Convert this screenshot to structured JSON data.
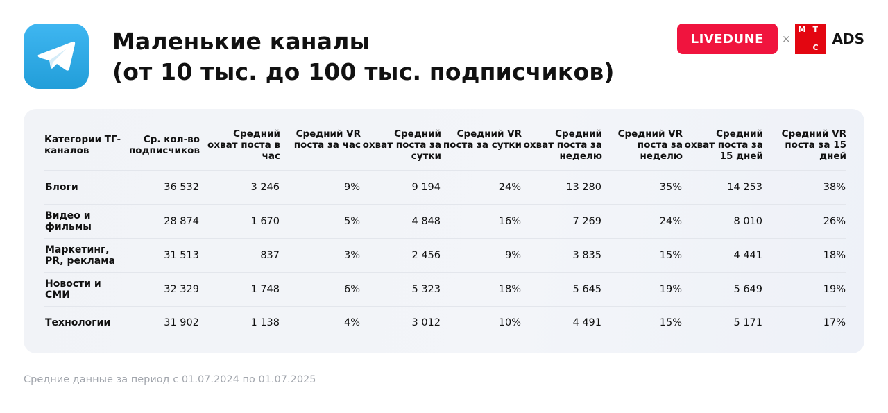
{
  "header": {
    "title_line1": "Маленькие каналы",
    "title_line2": "(от 10 тыс. до 100 тыс. подписчиков)",
    "logo_icon": "telegram-icon",
    "brand1": "LIVEDUNE",
    "separator": "×",
    "brand2_letters": [
      "М",
      "Т",
      "С"
    ],
    "brand2_suffix": "ADS",
    "colors": {
      "telegram": "#229ed9",
      "livedune": "#f0143e",
      "mts": "#e30611"
    }
  },
  "table": {
    "columns": [
      "Категории ТГ-каналов",
      "Ср. кол-во подписчиков",
      "Средний охват поста в час",
      "Средний VR поста за час",
      "Средний охват поста за сутки",
      "Средний VR поста за сутки",
      "Средний охват поста за неделю",
      "Средний VR поста за неделю",
      "Средний охват поста за 15 дней",
      "Средний VR поста за 15 дней"
    ],
    "rows": [
      [
        "Блоги",
        "36 532",
        "3 246",
        "9%",
        "9 194",
        "24%",
        "13 280",
        "35%",
        "14 253",
        "38%"
      ],
      [
        "Видео и фильмы",
        "28 874",
        "1 670",
        "5%",
        "4 848",
        "16%",
        "7 269",
        "24%",
        "8 010",
        "26%"
      ],
      [
        "Маркетинг, PR, реклама",
        "31 513",
        "837",
        "3%",
        "2 456",
        "9%",
        "3 835",
        "15%",
        "4 441",
        "18%"
      ],
      [
        "Новости и СМИ",
        "32 329",
        "1 748",
        "6%",
        "5 323",
        "18%",
        "5 645",
        "19%",
        "5 649",
        "19%"
      ],
      [
        "Технологии",
        "31 902",
        "1 138",
        "4%",
        "3 012",
        "10%",
        "4 491",
        "15%",
        "5 171",
        "17%"
      ]
    ]
  },
  "footer": "Средние данные за период с 01.07.2024 по 01.07.2025"
}
